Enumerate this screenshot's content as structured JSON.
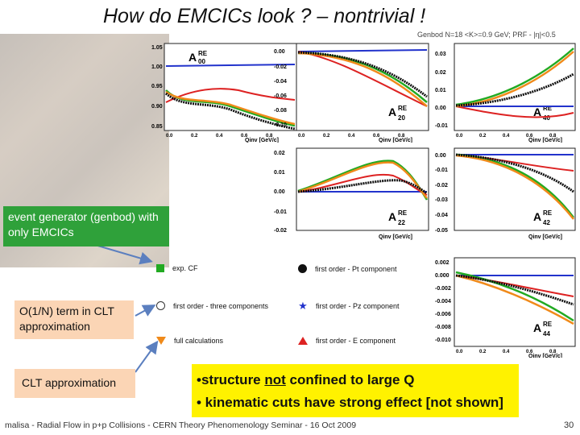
{
  "title": "How do EMCICs look ? – nontrivial !",
  "subtitle": "Genbod N=18 <K>=0.9 GeV; PRF - |η|<0.5",
  "boxes": {
    "generator": "event generator (genbod) with only EMCICs",
    "order": "O(1/N) term in CLT approximation",
    "clt": "CLT approximation"
  },
  "findings": {
    "line1_a": "•structure ",
    "line1_b": "not",
    "line1_c": " confined to large Q",
    "line2": "• kinematic cuts have strong effect [not shown]"
  },
  "footer": "malisa - Radial Flow in p+p Collisions - CERN Theory Phenomenology Seminar - 16 Oct 2009",
  "page_number": "30",
  "legend": {
    "exp_cf": "exp. CF",
    "three_comp": "first order - three components",
    "full_calc": "full calculations",
    "pt_comp": "first order - Pt component",
    "pz_comp": "first order - Pz component",
    "e_comp": "first order - E component"
  },
  "axis": {
    "xlabel": "Qinv [GeV/c]",
    "xticks": [
      "0.0",
      "0.2",
      "0.4",
      "0.6",
      "0.8"
    ]
  },
  "panels": {
    "a00": {
      "label": "A",
      "sup": "RE",
      "sub": "00",
      "yticks": [
        "1.05",
        "1.00",
        "0.95",
        "0.90",
        "0.85"
      ]
    },
    "a20": {
      "label": "A",
      "sup": "RE",
      "sub": "20",
      "yticks": [
        "0.00",
        "-0.02",
        "-0.04",
        "-0.06",
        "-0.08",
        "-0.10"
      ]
    },
    "a40": {
      "label": "A",
      "sup": "RE",
      "sub": "40",
      "yticks": [
        "0.03",
        "0.02",
        "0.01",
        "0.00",
        "-0.01"
      ]
    },
    "a22": {
      "label": "A",
      "sup": "RE",
      "sub": "22",
      "yticks": [
        "0.02",
        "0.01",
        "0.00",
        "-0.01",
        "-0.02"
      ]
    },
    "a42": {
      "label": "A",
      "sup": "RE",
      "sub": "42",
      "yticks": [
        "0.00",
        "-0.01",
        "-0.02",
        "-0.03",
        "-0.04",
        "-0.05"
      ]
    },
    "a44": {
      "label": "A",
      "sup": "RE",
      "sub": "44",
      "yticks": [
        "0.002",
        "0.000",
        "-0.002",
        "-0.004",
        "-0.006",
        "-0.008",
        "-0.010"
      ]
    }
  }
}
